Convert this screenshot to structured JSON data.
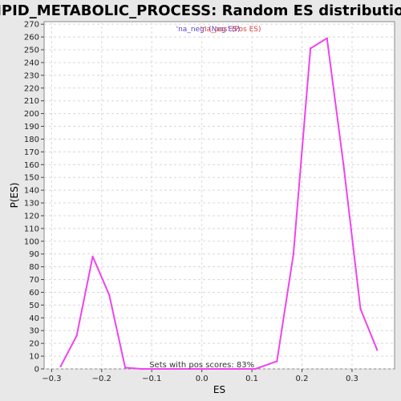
{
  "chart_data": {
    "type": "line",
    "title": "LIPID_METABOLIC_PROCESS: Random ES distribution",
    "xlabel": "ES",
    "ylabel": "P(ES)",
    "xlim": [
      -0.315,
      0.385
    ],
    "ylim": [
      0,
      272
    ],
    "x_ticks": [
      -0.3,
      -0.2,
      -0.1,
      0.0,
      0.1,
      0.2,
      0.3
    ],
    "x_tick_labels": [
      "−0.3",
      "−0.2",
      "−0.1",
      "0.0",
      "0.1",
      "0.2",
      "0.3"
    ],
    "y_ticks": [
      0,
      10,
      20,
      30,
      40,
      50,
      60,
      70,
      80,
      90,
      100,
      110,
      120,
      130,
      140,
      150,
      160,
      170,
      180,
      190,
      200,
      210,
      220,
      230,
      240,
      250,
      260,
      270
    ],
    "grid": true,
    "legend_position": "top-center",
    "legend": [
      {
        "text": "'na_neg' (Neg ES)",
        "color": "#5544cc"
      },
      {
        "text": "'na_pos' (Pos ES)",
        "color": "#e04040"
      }
    ],
    "annotation": "Sets with pos scores: 83%",
    "series": [
      {
        "color": "#ee44ee",
        "x": [
          -0.282,
          -0.25,
          -0.218,
          -0.185,
          -0.153,
          -0.12,
          -0.088,
          -0.055,
          -0.023,
          0.01,
          0.042,
          0.075,
          0.107,
          0.15,
          0.183,
          0.217,
          0.25,
          0.283,
          0.317,
          0.35
        ],
        "y": [
          2,
          26,
          88,
          58,
          1,
          0,
          0,
          0,
          0,
          0,
          0,
          0,
          0,
          6,
          90,
          251,
          259,
          160,
          47,
          15
        ]
      }
    ]
  }
}
